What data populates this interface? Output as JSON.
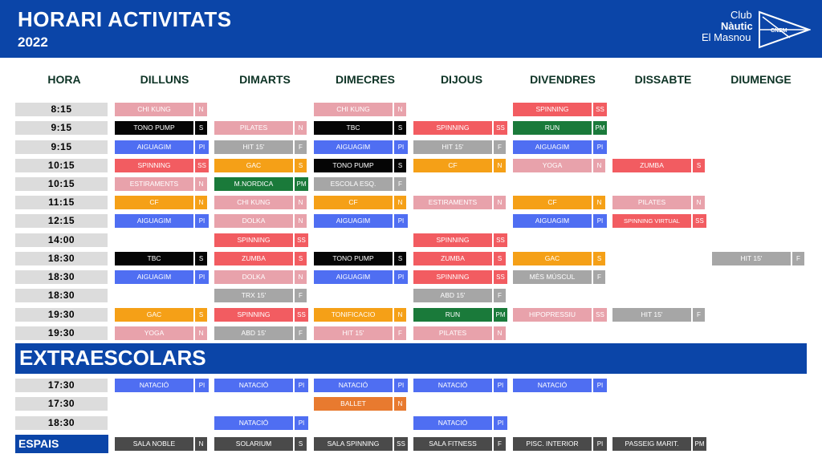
{
  "header": {
    "title": "HORARI ACTIVITATS",
    "year": "2022",
    "logo": {
      "line1": "Club",
      "line2": "Nàutic",
      "line3": "El Masnou",
      "badge": "CNEM"
    }
  },
  "columns": [
    "HORA",
    "DILLUNS",
    "DIMARTS",
    "DIMECRES",
    "DIJOUS",
    "DIVENDRES",
    "DISSABTE",
    "DIUMENGE"
  ],
  "colors": {
    "pink": "#e8a2ab",
    "black": "#050505",
    "red": "#f25c61",
    "blue": "#4f6ef2",
    "gray": "#a6a6a6",
    "orange": "#f5a017",
    "green": "#1a7a3a",
    "darkorange": "#e87a2f",
    "darkgray": "#4a4a4a",
    "header_blue": "#0b45a8"
  },
  "schedule": [
    {
      "hour": "8:15",
      "cells": [
        {
          "d": 1,
          "name": "CHI KUNG",
          "tag": "N",
          "c": "pink"
        },
        {
          "d": 3,
          "name": "CHI KUNG",
          "tag": "N",
          "c": "pink"
        },
        {
          "d": 5,
          "name": "SPINNING",
          "tag": "SS",
          "c": "red"
        }
      ]
    },
    {
      "hour": "9:15",
      "cells": [
        {
          "d": 1,
          "name": "TONO PUMP",
          "tag": "S",
          "c": "black"
        },
        {
          "d": 2,
          "name": "PILATES",
          "tag": "N",
          "c": "pink"
        },
        {
          "d": 3,
          "name": "TBC",
          "tag": "S",
          "c": "black"
        },
        {
          "d": 4,
          "name": "SPINNING",
          "tag": "SS",
          "c": "red"
        },
        {
          "d": 5,
          "name": "RUN",
          "tag": "PM",
          "c": "green"
        }
      ]
    },
    {
      "hour": "9:15",
      "cells": [
        {
          "d": 1,
          "name": "AIGUAGIM",
          "tag": "PI",
          "c": "blue"
        },
        {
          "d": 2,
          "name": "HIT 15'",
          "tag": "F",
          "c": "gray"
        },
        {
          "d": 3,
          "name": "AIGUAGIM",
          "tag": "PI",
          "c": "blue"
        },
        {
          "d": 4,
          "name": "HIT 15'",
          "tag": "F",
          "c": "gray"
        },
        {
          "d": 5,
          "name": "AIGUAGIM",
          "tag": "PI",
          "c": "blue"
        }
      ]
    },
    {
      "hour": "10:15",
      "cells": [
        {
          "d": 1,
          "name": "SPINNING",
          "tag": "SS",
          "c": "red"
        },
        {
          "d": 2,
          "name": "GAC",
          "tag": "S",
          "c": "orange"
        },
        {
          "d": 3,
          "name": "TONO PUMP",
          "tag": "S",
          "c": "black"
        },
        {
          "d": 4,
          "name": "CF",
          "tag": "N",
          "c": "orange"
        },
        {
          "d": 5,
          "name": "YOGA",
          "tag": "N",
          "c": "pink"
        },
        {
          "d": 6,
          "name": "ZUMBA",
          "tag": "S",
          "c": "red"
        }
      ]
    },
    {
      "hour": "10:15",
      "cells": [
        {
          "d": 1,
          "name": "ESTIRAMENTS",
          "tag": "N",
          "c": "pink"
        },
        {
          "d": 2,
          "name": "M.NORDICA",
          "tag": "PM",
          "c": "green"
        },
        {
          "d": 3,
          "name": "ESCOLA ESQ.",
          "tag": "F",
          "c": "gray"
        }
      ]
    },
    {
      "hour": "11:15",
      "cells": [
        {
          "d": 1,
          "name": "CF",
          "tag": "N",
          "c": "orange"
        },
        {
          "d": 2,
          "name": "CHI KUNG",
          "tag": "N",
          "c": "pink"
        },
        {
          "d": 3,
          "name": "CF",
          "tag": "N",
          "c": "orange"
        },
        {
          "d": 4,
          "name": "ESTIRAMENTS",
          "tag": "N",
          "c": "pink"
        },
        {
          "d": 5,
          "name": "CF",
          "tag": "N",
          "c": "orange"
        },
        {
          "d": 6,
          "name": "PILATES",
          "tag": "N",
          "c": "pink"
        }
      ]
    },
    {
      "hour": "12:15",
      "cells": [
        {
          "d": 1,
          "name": "AIGUAGIM",
          "tag": "PI",
          "c": "blue"
        },
        {
          "d": 2,
          "name": "DOLKA",
          "tag": "N",
          "c": "pink"
        },
        {
          "d": 3,
          "name": "AIGUAGIM",
          "tag": "PI",
          "c": "blue"
        },
        {
          "d": 5,
          "name": "AIGUAGIM",
          "tag": "PI",
          "c": "blue"
        },
        {
          "d": 6,
          "name": "SPINNING VIRTUAL",
          "tag": "SS",
          "c": "red"
        }
      ]
    },
    {
      "hour": "14:00",
      "cells": [
        {
          "d": 2,
          "name": "SPINNING",
          "tag": "SS",
          "c": "red"
        },
        {
          "d": 4,
          "name": "SPINNING",
          "tag": "SS",
          "c": "red"
        }
      ]
    },
    {
      "hour": "18:30",
      "cells": [
        {
          "d": 1,
          "name": "TBC",
          "tag": "S",
          "c": "black"
        },
        {
          "d": 2,
          "name": "ZUMBA",
          "tag": "S",
          "c": "red"
        },
        {
          "d": 3,
          "name": "TONO PUMP",
          "tag": "S",
          "c": "black"
        },
        {
          "d": 4,
          "name": "ZUMBA",
          "tag": "S",
          "c": "red"
        },
        {
          "d": 5,
          "name": "GAC",
          "tag": "S",
          "c": "orange"
        },
        {
          "d": 7,
          "name": "HIT 15'",
          "tag": "F",
          "c": "gray"
        }
      ]
    },
    {
      "hour": "18:30",
      "cells": [
        {
          "d": 1,
          "name": "AIGUAGIM",
          "tag": "PI",
          "c": "blue"
        },
        {
          "d": 2,
          "name": "DOLKA",
          "tag": "N",
          "c": "pink"
        },
        {
          "d": 3,
          "name": "AIGUAGIM",
          "tag": "PI",
          "c": "blue"
        },
        {
          "d": 4,
          "name": "SPINNING",
          "tag": "SS",
          "c": "red"
        },
        {
          "d": 5,
          "name": "MÈS MÚSCUL",
          "tag": "F",
          "c": "gray"
        }
      ]
    },
    {
      "hour": "18:30",
      "cells": [
        {
          "d": 2,
          "name": "TRX 15'",
          "tag": "F",
          "c": "gray"
        },
        {
          "d": 4,
          "name": "ABD 15'",
          "tag": "F",
          "c": "gray"
        }
      ]
    },
    {
      "hour": "19:30",
      "cells": [
        {
          "d": 1,
          "name": "GAC",
          "tag": "S",
          "c": "orange"
        },
        {
          "d": 2,
          "name": "SPINNING",
          "tag": "SS",
          "c": "red"
        },
        {
          "d": 3,
          "name": "TONIFICACIO",
          "tag": "N",
          "c": "orange"
        },
        {
          "d": 4,
          "name": "RUN",
          "tag": "PM",
          "c": "green"
        },
        {
          "d": 5,
          "name": "HIPOPRESSIU",
          "tag": "SS",
          "c": "pink"
        },
        {
          "d": 6,
          "name": "HIT 15'",
          "tag": "F",
          "c": "gray"
        }
      ]
    },
    {
      "hour": "19:30",
      "cells": [
        {
          "d": 1,
          "name": "YOGA",
          "tag": "N",
          "c": "pink"
        },
        {
          "d": 2,
          "name": "ABD 15'",
          "tag": "F",
          "c": "gray"
        },
        {
          "d": 3,
          "name": "HIT 15'",
          "tag": "F",
          "c": "pink"
        },
        {
          "d": 4,
          "name": "PILATES",
          "tag": "N",
          "c": "pink"
        }
      ]
    }
  ],
  "extraescolars": {
    "label": "EXTRAESCOLARS",
    "rows": [
      {
        "hour": "17:30",
        "cells": [
          {
            "d": 1,
            "name": "NATACIÓ",
            "tag": "PI",
            "c": "blue"
          },
          {
            "d": 2,
            "name": "NATACIÓ",
            "tag": "PI",
            "c": "blue"
          },
          {
            "d": 3,
            "name": "NATACIÓ",
            "tag": "PI",
            "c": "blue"
          },
          {
            "d": 4,
            "name": "NATACIÓ",
            "tag": "PI",
            "c": "blue"
          },
          {
            "d": 5,
            "name": "NATACIÓ",
            "tag": "PI",
            "c": "blue"
          }
        ]
      },
      {
        "hour": "17:30",
        "cells": [
          {
            "d": 3,
            "name": "BALLET",
            "tag": "N",
            "c": "darkorange"
          }
        ]
      },
      {
        "hour": "18:30",
        "cells": [
          {
            "d": 2,
            "name": "NATACIÓ",
            "tag": "PI",
            "c": "blue"
          },
          {
            "d": 4,
            "name": "NATACIÓ",
            "tag": "PI",
            "c": "blue"
          }
        ]
      }
    ]
  },
  "espais": {
    "label": "ESPAIS",
    "items": [
      {
        "name": "SALA NOBLE",
        "tag": "N"
      },
      {
        "name": "SOLARIUM",
        "tag": "S"
      },
      {
        "name": "SALA SPINNING",
        "tag": "SS"
      },
      {
        "name": "SALA FITNESS",
        "tag": "F"
      },
      {
        "name": "PISC. INTERIOR",
        "tag": "PI"
      },
      {
        "name": "PASSEIG MARIT.",
        "tag": "PM"
      }
    ]
  }
}
